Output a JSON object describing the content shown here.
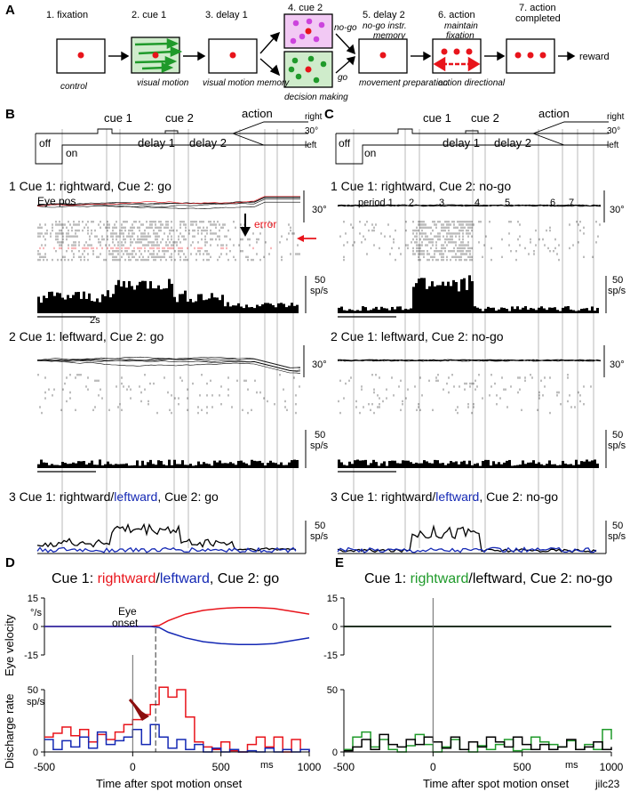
{
  "panels": {
    "A": "A",
    "B": "B",
    "C": "C",
    "D": "D",
    "E": "E"
  },
  "colors": {
    "red": "#e8141b",
    "green": "#1f9a2a",
    "blue": "#1428b4",
    "magenta": "#cc44dd",
    "darkred": "#8b0e0e",
    "greenfill": "#cfeccb",
    "magentafill": "#f2c9f4"
  },
  "schematic": {
    "steps": [
      "1. fixation",
      "2. cue 1",
      "3. delay 1",
      "4. cue 2",
      "5. delay 2",
      "6. action",
      "7. action completed"
    ],
    "step7_line1": "7. action",
    "step7_line2": "completed",
    "step5_sub": "no-go instr.",
    "step5_sub2": "memory",
    "step6_sub1": "maintain",
    "step6_sub2": "fixation",
    "captions": [
      "control",
      "visual motion",
      "visual motion memory",
      "decision making",
      "movement preparation",
      "action directional"
    ],
    "nogo": "no-go",
    "go": "go",
    "reward": "reward"
  },
  "timeline": {
    "cue1": "cue 1",
    "cue2": "cue 2",
    "delay1": "delay 1",
    "delay2": "delay 2",
    "action": "action",
    "right": "right",
    "deg30": "30°",
    "left": "left",
    "off": "off",
    "on": "on"
  },
  "panelB": {
    "row1": "1  Cue 1: rightward, Cue 2: go",
    "row2": "2  Cue 1: leftward, Cue 2: go",
    "row3_pre": "3  Cue 1: rightward/",
    "row3_blue": "leftward",
    "row3_post": ", Cue 2: go",
    "eyepos": "Eye pos",
    "error": "error",
    "scale_deg": "30°",
    "rate_num": "50",
    "rate_unit": "sp/s",
    "timebar": "2s"
  },
  "panelC": {
    "row1": "1  Cue 1: rightward, Cue 2: no-go",
    "row2": "2  Cue 1: leftward, Cue 2: no-go",
    "row3_pre": "3  Cue 1: rightward/",
    "row3_blue": "leftward",
    "row3_post": ", Cue 2: no-go",
    "periods": [
      "period 1",
      "2",
      "3",
      "4",
      "5",
      "6",
      "7"
    ],
    "scale_deg": "30°",
    "rate_num": "50",
    "rate_unit": "sp/s"
  },
  "panelD": {
    "title_pre": "Cue 1: ",
    "title_red": "rightward",
    "title_slash": "/",
    "title_blue": "leftward",
    "title_post": ", Cue 2: go",
    "eye_onset1": "Eye",
    "eye_onset2": "onset",
    "vel_unit": "°/s",
    "rate_unit": "sp/s",
    "ylabel_vel": "Eye velocity",
    "ylabel_rate": "Discharge rate",
    "xlabel": "Time after spot motion onset",
    "ms": "ms"
  },
  "panelE": {
    "title_pre": "Cue 1: ",
    "title_green": "rightward",
    "title_post": "/leftward, Cue 2: no-go",
    "xlabel": "Time after spot motion onset",
    "ms": "ms",
    "cell_id": "jilc23"
  },
  "chart_data": [
    {
      "type": "line",
      "title": "Cue 1: rightward/leftward, Cue 2: go — Eye velocity",
      "xlabel": "Time after spot motion onset (ms)",
      "ylabel": "Eye velocity (°/s)",
      "xlim": [
        -500,
        1000
      ],
      "ylim": [
        -15,
        15
      ],
      "xticks": [
        -500,
        0,
        500,
        1000
      ],
      "yticks": [
        15,
        0,
        -15
      ],
      "x": [
        -500,
        0,
        100,
        150,
        200,
        300,
        400,
        500,
        600,
        700,
        800,
        900,
        1000
      ],
      "series": [
        {
          "name": "rightward",
          "values": [
            0,
            0,
            0,
            0.5,
            3,
            6.5,
            8.5,
            9.5,
            10,
            10,
            9.5,
            8,
            6.5
          ]
        },
        {
          "name": "leftward",
          "values": [
            0,
            0,
            0,
            -0.5,
            -3,
            -6,
            -8,
            -9,
            -9.5,
            -9.5,
            -9,
            -7.5,
            -6
          ]
        }
      ]
    },
    {
      "type": "line",
      "title": "Cue 1: rightward/leftward, Cue 2: go — Discharge rate",
      "xlabel": "Time after spot motion onset (ms)",
      "ylabel": "Discharge rate (sp/s)",
      "xlim": [
        -500,
        1000
      ],
      "ylim": [
        0,
        50
      ],
      "yticks": [
        0,
        50
      ],
      "x": [
        -500,
        -450,
        -400,
        -350,
        -300,
        -250,
        -200,
        -150,
        -100,
        -50,
        0,
        50,
        100,
        150,
        200,
        250,
        300,
        350,
        400,
        450,
        500,
        550,
        600,
        650,
        700,
        750,
        800,
        850,
        900,
        950,
        1000
      ],
      "series": [
        {
          "name": "rightward",
          "values": [
            12,
            15,
            20,
            13,
            18,
            8,
            14,
            10,
            16,
            22,
            26,
            30,
            38,
            52,
            44,
            50,
            28,
            8,
            4,
            2,
            8,
            1,
            0,
            6,
            12,
            4,
            12,
            0,
            10,
            2,
            0
          ]
        },
        {
          "name": "leftward",
          "values": [
            10,
            2,
            9,
            4,
            12,
            3,
            16,
            6,
            9,
            12,
            18,
            6,
            22,
            12,
            3,
            10,
            2,
            6,
            0,
            3,
            0,
            2,
            0,
            1,
            0,
            3,
            0,
            2,
            0,
            2,
            0
          ]
        }
      ]
    },
    {
      "type": "line",
      "title": "Cue 1: rightward/leftward, Cue 2: no-go — Eye velocity",
      "xlabel": "Time after spot motion onset (ms)",
      "ylabel": "Eye velocity (°/s)",
      "xlim": [
        -500,
        1000
      ],
      "ylim": [
        -15,
        15
      ],
      "xticks": [
        -500,
        0,
        500,
        1000
      ],
      "yticks": [
        15,
        0,
        -15
      ],
      "x": [
        -500,
        0,
        500,
        1000
      ],
      "series": [
        {
          "name": "rightward",
          "values": [
            0,
            0,
            0,
            0
          ]
        },
        {
          "name": "leftward",
          "values": [
            0,
            0,
            0,
            0
          ]
        }
      ]
    },
    {
      "type": "line",
      "title": "Cue 1: rightward/leftward, Cue 2: no-go — Discharge rate",
      "xlabel": "Time after spot motion onset (ms)",
      "ylabel": "Discharge rate (sp/s)",
      "xlim": [
        -500,
        1000
      ],
      "ylim": [
        0,
        50
      ],
      "yticks": [
        0,
        50
      ],
      "x": [
        -500,
        -450,
        -400,
        -350,
        -300,
        -250,
        -200,
        -150,
        -100,
        -50,
        0,
        50,
        100,
        150,
        200,
        250,
        300,
        350,
        400,
        450,
        500,
        550,
        600,
        650,
        700,
        750,
        800,
        850,
        900,
        950,
        1000
      ],
      "series": [
        {
          "name": "rightward",
          "values": [
            2,
            12,
            16,
            4,
            10,
            2,
            0,
            5,
            14,
            6,
            0,
            4,
            10,
            2,
            0,
            5,
            2,
            6,
            10,
            1,
            2,
            12,
            8,
            6,
            4,
            9,
            2,
            6,
            2,
            18,
            10
          ]
        },
        {
          "name": "leftward",
          "values": [
            1,
            4,
            10,
            2,
            14,
            6,
            4,
            10,
            6,
            12,
            8,
            3,
            12,
            2,
            8,
            4,
            12,
            8,
            4,
            12,
            6,
            2,
            6,
            2,
            4,
            10,
            2,
            4,
            8,
            2,
            4
          ]
        }
      ]
    }
  ]
}
